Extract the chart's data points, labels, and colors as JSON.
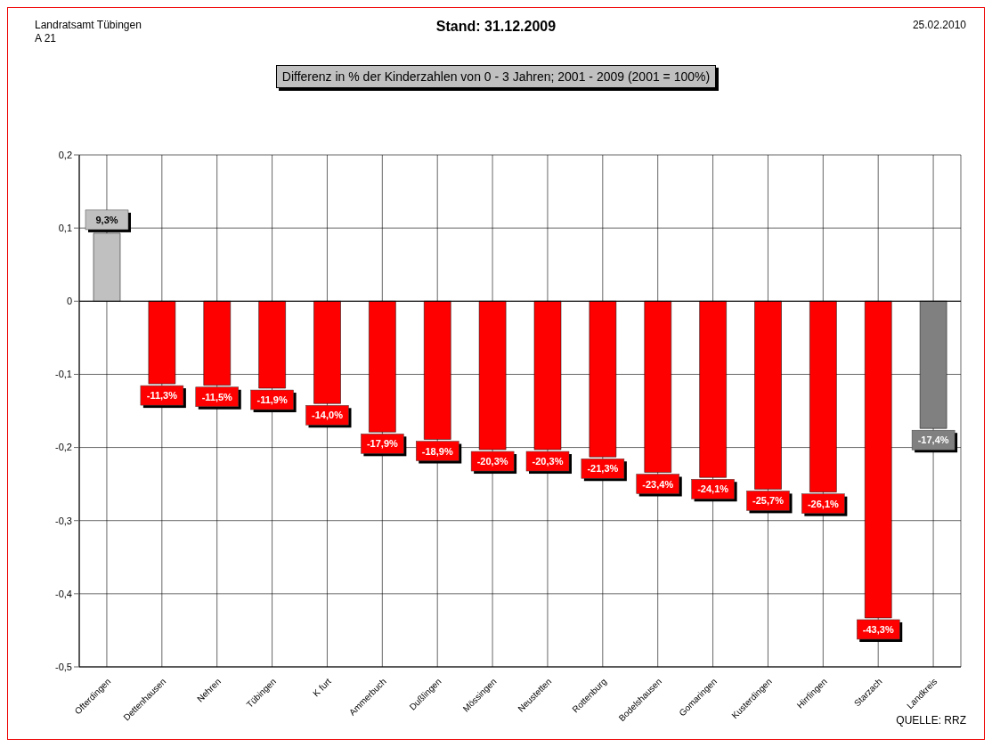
{
  "chart_data": {
    "type": "bar",
    "title": "Stand: 31.12.2009",
    "subtitle": "Differenz in %  der Kinderzahlen von 0 - 3 Jahren; 2001 - 2009 (2001 = 100%)",
    "categories": [
      "Ofterdingen",
      "Dettenhausen",
      "Nehren",
      "Tübingen",
      "K furt",
      "Ammerbuch",
      "Dußlingen",
      "Mössingen",
      "Neustetten",
      "Rottenburg",
      "Bodelshausen",
      "Gomaringen",
      "Kusterdingen",
      "Hirrlingen",
      "Starzach",
      "Landkreis"
    ],
    "values": [
      0.093,
      -0.113,
      -0.115,
      -0.119,
      -0.14,
      -0.179,
      -0.189,
      -0.203,
      -0.203,
      -0.213,
      -0.234,
      -0.241,
      -0.257,
      -0.261,
      -0.433,
      -0.174
    ],
    "colors": [
      "#c0c0c0",
      "#ff0000",
      "#ff0000",
      "#ff0000",
      "#ff0000",
      "#ff0000",
      "#ff0000",
      "#ff0000",
      "#ff0000",
      "#ff0000",
      "#ff0000",
      "#ff0000",
      "#ff0000",
      "#ff0000",
      "#ff0000",
      "#808080"
    ],
    "value_labels": [
      "9,3%",
      "-11,3%",
      "-11,5%",
      "-11,9%",
      "-14,0%",
      "-17,9%",
      "-18,9%",
      "-20,3%",
      "-20,3%",
      "-21,3%",
      "-23,4%",
      "-24,1%",
      "-25,7%",
      "-26,1%",
      "-43,3%",
      "-17,4%"
    ],
    "ylim": [
      -0.5,
      0.2
    ],
    "yticks": [
      {
        "value": -0.5,
        "label": "-0,5"
      },
      {
        "value": -0.4,
        "label": "-0,4"
      },
      {
        "value": -0.3,
        "label": "-0,3"
      },
      {
        "value": -0.2,
        "label": "-0,2"
      },
      {
        "value": -0.1,
        "label": "-0,1"
      },
      {
        "value": 0,
        "label": "0"
      },
      {
        "value": 0.1,
        "label": "0,1"
      },
      {
        "value": 0.2,
        "label": "0,2"
      }
    ],
    "grid": true,
    "annotations": [
      "Landratsamt Tübingen",
      "A 21",
      "25.02.2010",
      "QUELLE: RRZ"
    ]
  }
}
